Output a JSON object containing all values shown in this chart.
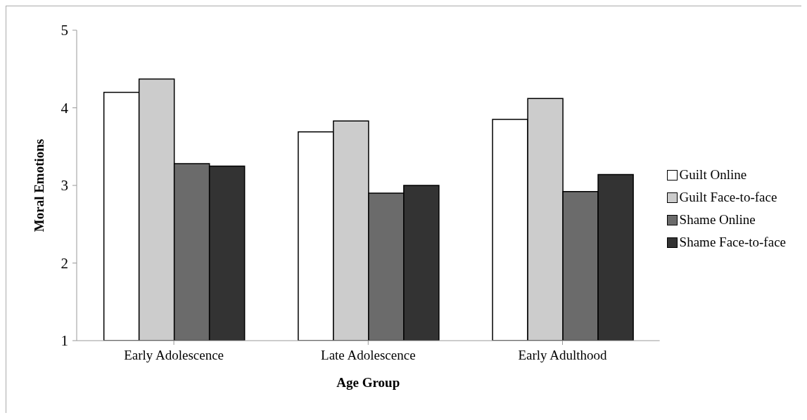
{
  "chart_data": {
    "type": "bar",
    "xlabel": "Age Group",
    "ylabel": "Moral Emotions",
    "categories": [
      "Early Adolescence",
      "Late Adolescence",
      "Early Adulthood"
    ],
    "series": [
      {
        "name": "Guilt Online",
        "color": "#ffffff",
        "values": [
          4.2,
          3.69,
          3.85
        ]
      },
      {
        "name": "Guilt Face-to-face",
        "color": "#cccccc",
        "values": [
          4.37,
          3.83,
          4.12
        ]
      },
      {
        "name": "Shame Online",
        "color": "#6b6b6b",
        "values": [
          3.28,
          2.9,
          2.92
        ]
      },
      {
        "name": "Shame Face-to-face",
        "color": "#333333",
        "values": [
          3.25,
          3.0,
          3.14
        ]
      }
    ],
    "ylim": [
      1,
      5
    ],
    "yticks": [
      1,
      2,
      3,
      4,
      5
    ],
    "grid": false,
    "legend": "right"
  }
}
